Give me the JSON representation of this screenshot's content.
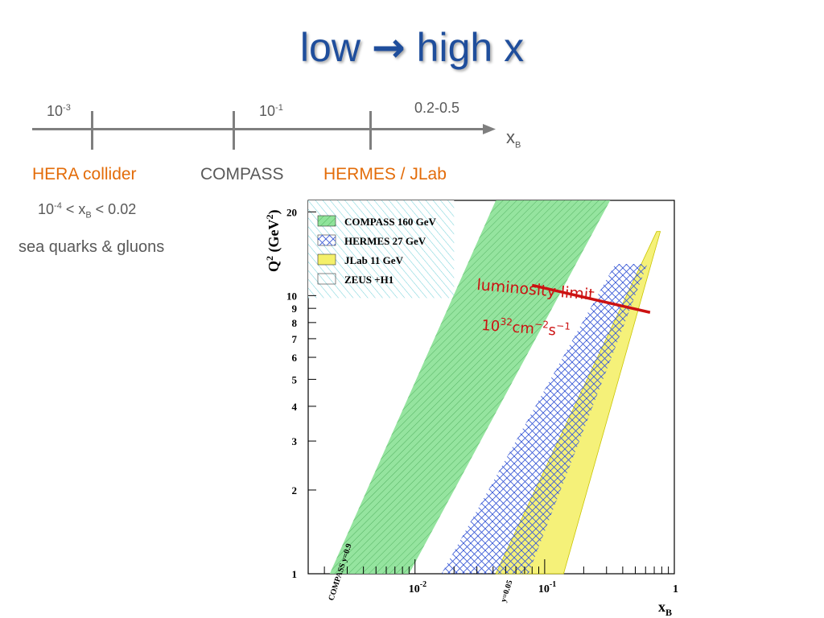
{
  "slide": {
    "title_left": "low",
    "title_arrow": "→",
    "title_right": "high x"
  },
  "scale": {
    "tick1": {
      "base": "10",
      "exp": "-3"
    },
    "tick2": {
      "base": "10",
      "exp": "-1"
    },
    "tick3": "0.2-0.5",
    "axis_label": "x",
    "axis_sub": "B",
    "labels": [
      "HERA collider",
      "COMPASS",
      "HERMES / JLab"
    ],
    "hera_range": {
      "a": "10",
      "a_exp": "-4",
      "b": " < x",
      "b_sub": "B",
      "c": " < 0.02"
    },
    "hera_note": "sea quarks & gluons"
  },
  "colors": {
    "title": "#1f4e9c",
    "orange": "#e36c09",
    "compass": "#8fe39a",
    "hermes": "#3b5bd6",
    "jlab": "#f4f06a",
    "zeus": "#6fd0d8",
    "lumi": "#cc1111"
  },
  "chart_data": {
    "type": "area",
    "xlabel": "x",
    "xlabel_sub": "B",
    "ylabel": "Q",
    "ylabel_unit": "(GeV",
    "x_scale": "log",
    "y_scale": "log",
    "xlim": [
      0.0015,
      1
    ],
    "ylim": [
      1,
      22
    ],
    "x_ticks": [
      {
        "base": "10",
        "exp": "-2"
      },
      {
        "base": "10",
        "exp": "-1"
      },
      {
        "base": "1",
        "exp": ""
      }
    ],
    "y_ticks": [
      "1",
      "2",
      "3",
      "4",
      "5",
      "6",
      "7",
      "8",
      "9",
      "10",
      "20"
    ],
    "legend": [
      {
        "name": "COMPASS 160 GeV",
        "key": "compass"
      },
      {
        "name": "HERMES 27 GeV",
        "key": "hermes"
      },
      {
        "name": "JLab 11 GeV",
        "key": "jlab"
      },
      {
        "name": "ZEUS +H1",
        "key": "zeus"
      }
    ],
    "legend_position": "top-left",
    "series": [
      {
        "key": "zeus",
        "points": [
          [
            0.0015,
            1.85
          ],
          [
            0.0015,
            22
          ],
          [
            0.003,
            22
          ],
          [
            0.02,
            22
          ],
          [
            0.02,
            9.8
          ],
          [
            0.0015,
            9.8
          ]
        ]
      },
      {
        "key": "compass",
        "points": [
          [
            0.0022,
            1
          ],
          [
            0.009,
            1
          ],
          [
            0.32,
            22
          ],
          [
            0.042,
            22
          ]
        ]
      },
      {
        "key": "hermes",
        "points": [
          [
            0.016,
            1
          ],
          [
            0.075,
            1
          ],
          [
            0.62,
            13
          ],
          [
            0.35,
            13
          ]
        ]
      },
      {
        "key": "jlab",
        "points": [
          [
            0.042,
            1
          ],
          [
            0.14,
            1
          ],
          [
            0.78,
            17
          ],
          [
            0.73,
            17
          ]
        ]
      }
    ],
    "annotations": {
      "compass_y": "COMPASS  y=0.9",
      "hermes_y": "y=0.05",
      "lumi_title": "luminosity limit",
      "lumi_base": "10",
      "lumi_exp": "32",
      "lumi_unit": "cm",
      "lumi_unit_exp": "−2",
      "lumi_s": "s",
      "lumi_s_exp": "−1",
      "lumi_line": [
        [
          0.08,
          10.9
        ],
        [
          0.65,
          8.7
        ]
      ]
    }
  }
}
